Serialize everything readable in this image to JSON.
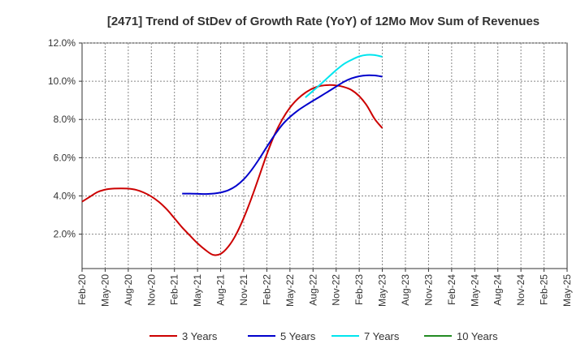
{
  "chart_data": {
    "type": "line",
    "title": "[2471]  Trend of StDev of Growth Rate (YoY) of 12Mo Mov Sum of Revenues",
    "xlabel": "",
    "ylabel": "",
    "x_ticks": [
      "Feb-20",
      "May-20",
      "Aug-20",
      "Nov-20",
      "Feb-21",
      "May-21",
      "Aug-21",
      "Nov-21",
      "Feb-22",
      "May-22",
      "Aug-22",
      "Nov-22",
      "Feb-23",
      "May-23",
      "Aug-23",
      "Nov-23",
      "Feb-24",
      "May-24",
      "Aug-24",
      "Nov-24",
      "Feb-25",
      "May-25"
    ],
    "y_ticks": [
      "2.0%",
      "4.0%",
      "6.0%",
      "8.0%",
      "10.0%",
      "12.0%"
    ],
    "y_tick_values": [
      2,
      4,
      6,
      8,
      10,
      12
    ],
    "ylim": [
      0.2,
      12.0
    ],
    "grid": true,
    "legend_position": "bottom",
    "series": [
      {
        "name": "3 Years",
        "color": "#cc0000",
        "points": [
          [
            0,
            3.7
          ],
          [
            1,
            3.95
          ],
          [
            2,
            4.2
          ],
          [
            3,
            4.33
          ],
          [
            4,
            4.38
          ],
          [
            5,
            4.39
          ],
          [
            6,
            4.38
          ],
          [
            7,
            4.32
          ],
          [
            8,
            4.18
          ],
          [
            9,
            3.97
          ],
          [
            10,
            3.68
          ],
          [
            11,
            3.3
          ],
          [
            12,
            2.83
          ],
          [
            13,
            2.35
          ],
          [
            14,
            1.93
          ],
          [
            15,
            1.52
          ],
          [
            16,
            1.18
          ],
          [
            17,
            0.92
          ],
          [
            18,
            0.97
          ],
          [
            19,
            1.35
          ],
          [
            20,
            1.98
          ],
          [
            21,
            2.85
          ],
          [
            22,
            3.88
          ],
          [
            23,
            5.02
          ],
          [
            24,
            6.18
          ],
          [
            25,
            7.2
          ],
          [
            26,
            8.0
          ],
          [
            27,
            8.62
          ],
          [
            28,
            9.07
          ],
          [
            29,
            9.4
          ],
          [
            30,
            9.63
          ],
          [
            31,
            9.76
          ],
          [
            32,
            9.8
          ],
          [
            33,
            9.78
          ],
          [
            34,
            9.7
          ],
          [
            35,
            9.54
          ],
          [
            36,
            9.22
          ],
          [
            37,
            8.72
          ],
          [
            38,
            8.03
          ],
          [
            39,
            7.55
          ]
        ]
      },
      {
        "name": "5 Years",
        "color": "#0000cc",
        "points": [
          [
            13,
            4.12
          ],
          [
            14,
            4.12
          ],
          [
            15,
            4.11
          ],
          [
            16,
            4.1
          ],
          [
            17,
            4.12
          ],
          [
            18,
            4.18
          ],
          [
            19,
            4.3
          ],
          [
            20,
            4.52
          ],
          [
            21,
            4.87
          ],
          [
            22,
            5.35
          ],
          [
            23,
            5.93
          ],
          [
            24,
            6.57
          ],
          [
            25,
            7.18
          ],
          [
            26,
            7.72
          ],
          [
            27,
            8.13
          ],
          [
            28,
            8.46
          ],
          [
            29,
            8.73
          ],
          [
            30,
            8.98
          ],
          [
            31,
            9.22
          ],
          [
            32,
            9.47
          ],
          [
            33,
            9.72
          ],
          [
            34,
            9.97
          ],
          [
            35,
            10.15
          ],
          [
            36,
            10.26
          ],
          [
            37,
            10.31
          ],
          [
            38,
            10.3
          ],
          [
            39,
            10.24
          ]
        ]
      },
      {
        "name": "7 Years",
        "color": "#00e5ee",
        "points": [
          [
            29,
            9.15
          ],
          [
            30,
            9.5
          ],
          [
            31,
            9.85
          ],
          [
            32,
            10.22
          ],
          [
            33,
            10.58
          ],
          [
            34,
            10.9
          ],
          [
            35,
            11.12
          ],
          [
            36,
            11.3
          ],
          [
            37,
            11.38
          ],
          [
            38,
            11.37
          ],
          [
            39,
            11.28
          ]
        ]
      },
      {
        "name": "10 Years",
        "color": "#228b22",
        "points": []
      }
    ]
  }
}
